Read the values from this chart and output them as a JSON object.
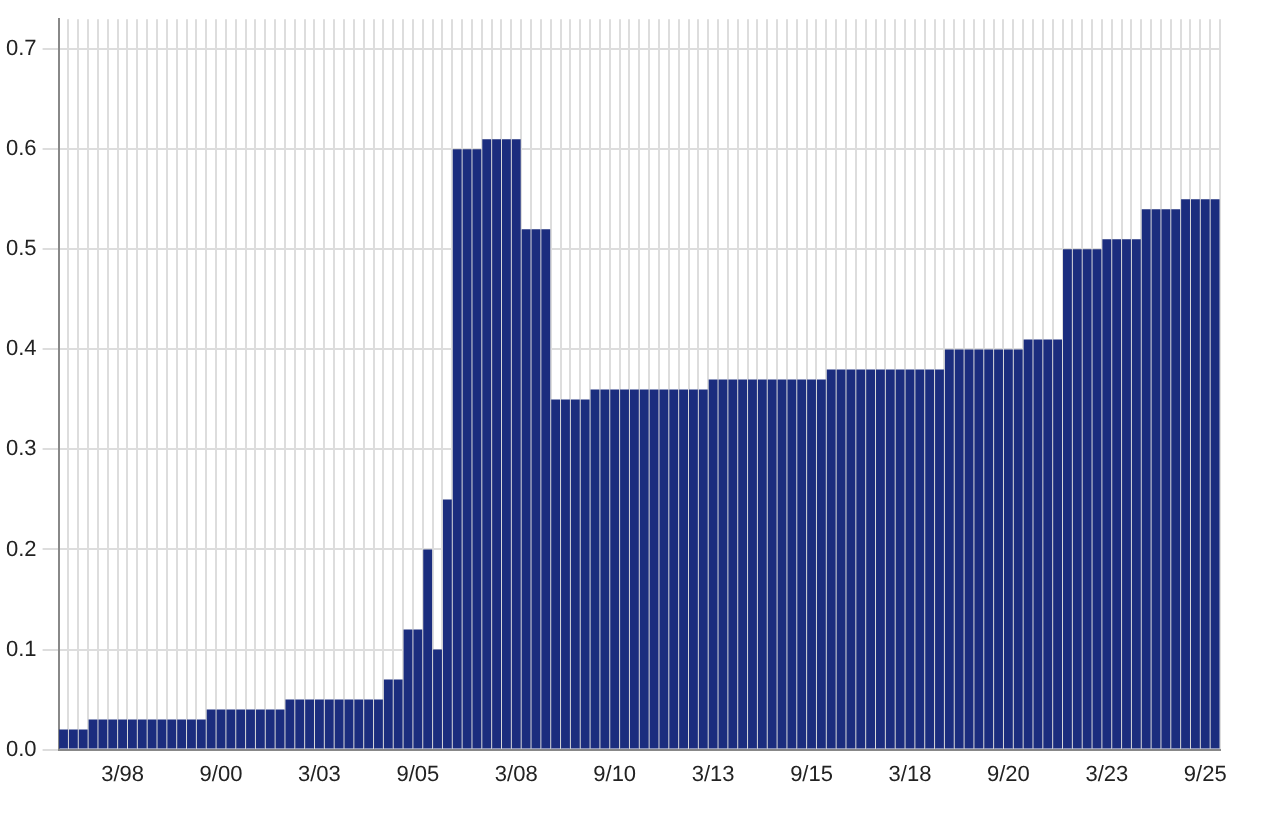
{
  "chart_data": {
    "type": "bar",
    "categories": [
      null,
      null,
      null,
      null,
      null,
      null,
      "3/98",
      null,
      null,
      null,
      null,
      null,
      null,
      null,
      null,
      null,
      "9/00",
      null,
      null,
      null,
      null,
      null,
      null,
      null,
      null,
      null,
      "3/03",
      null,
      null,
      null,
      null,
      null,
      null,
      null,
      null,
      null,
      "9/05",
      null,
      null,
      null,
      null,
      null,
      null,
      null,
      null,
      null,
      "3/08",
      null,
      null,
      null,
      null,
      null,
      null,
      null,
      null,
      null,
      "9/10",
      null,
      null,
      null,
      null,
      null,
      null,
      null,
      null,
      null,
      "3/13",
      null,
      null,
      null,
      null,
      null,
      null,
      null,
      null,
      null,
      "9/15",
      null,
      null,
      null,
      null,
      null,
      null,
      null,
      null,
      null,
      "3/18",
      null,
      null,
      null,
      null,
      null,
      null,
      null,
      null,
      null,
      "9/20",
      null,
      null,
      null,
      null,
      null,
      null,
      null,
      null,
      null,
      "3/23",
      null,
      null,
      null,
      null,
      null,
      null,
      null,
      null,
      null,
      "9/25",
      null
    ],
    "values": [
      0.02,
      0.02,
      0.02,
      0.03,
      0.03,
      0.03,
      0.03,
      0.03,
      0.03,
      0.03,
      0.03,
      0.03,
      0.03,
      0.03,
      0.03,
      0.04,
      0.04,
      0.04,
      0.04,
      0.04,
      0.04,
      0.04,
      0.04,
      0.05,
      0.05,
      0.05,
      0.05,
      0.05,
      0.05,
      0.05,
      0.05,
      0.05,
      0.05,
      0.07,
      0.07,
      0.12,
      0.12,
      0.2,
      0.1,
      0.25,
      0.6,
      0.6,
      0.6,
      0.61,
      0.61,
      0.61,
      0.61,
      0.52,
      0.52,
      0.52,
      0.35,
      0.35,
      0.35,
      0.35,
      0.36,
      0.36,
      0.36,
      0.36,
      0.36,
      0.36,
      0.36,
      0.36,
      0.36,
      0.36,
      0.36,
      0.36,
      0.37,
      0.37,
      0.37,
      0.37,
      0.37,
      0.37,
      0.37,
      0.37,
      0.37,
      0.37,
      0.37,
      0.37,
      0.38,
      0.38,
      0.38,
      0.38,
      0.38,
      0.38,
      0.38,
      0.38,
      0.38,
      0.38,
      0.38,
      0.38,
      0.4,
      0.4,
      0.4,
      0.4,
      0.4,
      0.4,
      0.4,
      0.4,
      0.41,
      0.41,
      0.41,
      0.41,
      0.5,
      0.5,
      0.5,
      0.5,
      0.51,
      0.51,
      0.51,
      0.51,
      0.54,
      0.54,
      0.54,
      0.54,
      0.55,
      0.55,
      0.55,
      0.55
    ],
    "color": "#1b2d7e",
    "ylim": [
      0,
      0.73
    ],
    "yticks": [
      {
        "value": 0,
        "label": "0.0"
      },
      {
        "value": 0.1,
        "label": "0.1"
      },
      {
        "value": 0.2,
        "label": "0.2"
      },
      {
        "value": 0.3,
        "label": "0.3"
      },
      {
        "value": 0.4,
        "label": "0.4"
      },
      {
        "value": 0.5,
        "label": "0.5"
      },
      {
        "value": 0.6,
        "label": "0.6"
      },
      {
        "value": 0.7,
        "label": "0.7"
      }
    ],
    "grid": true
  }
}
